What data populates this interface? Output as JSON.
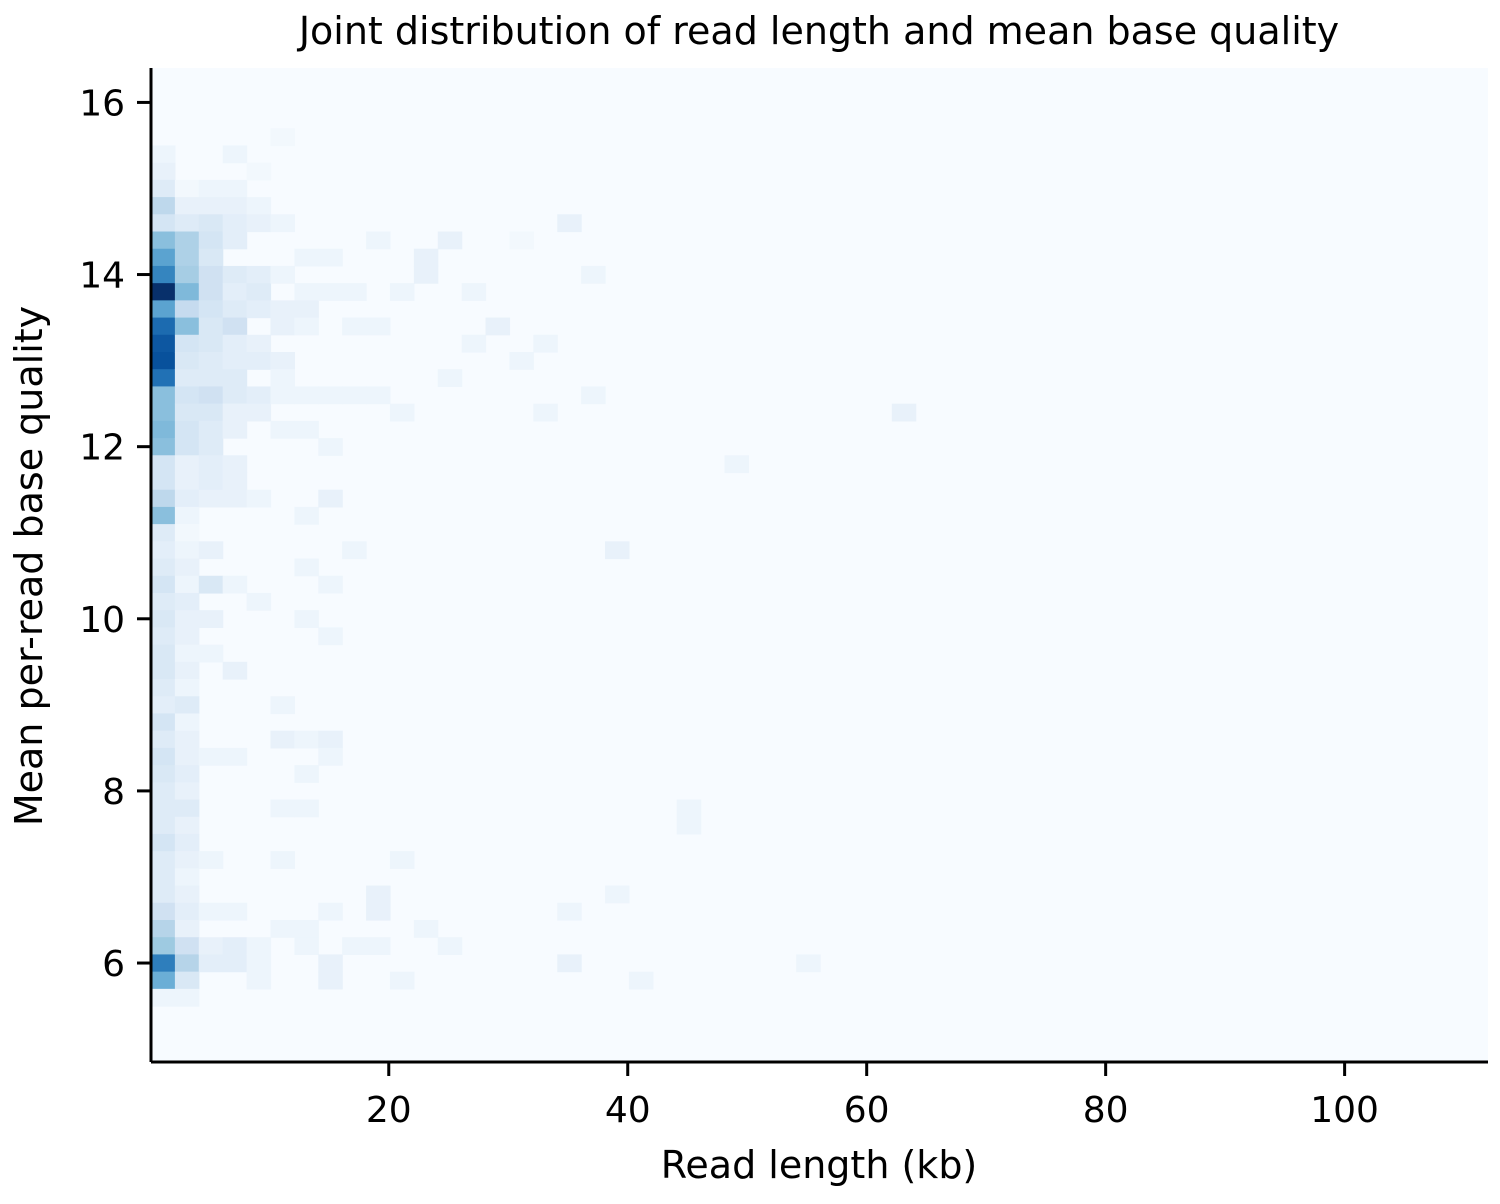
{
  "chart_data": {
    "type": "heatmap",
    "title": "Joint distribution of read length and mean base quality",
    "xlabel": "Read length (kb)",
    "ylabel": "Mean per-read base quality",
    "xlim": [
      0.1,
      112.0
    ],
    "ylim": [
      4.85,
      16.4
    ],
    "x_ticks": [
      20,
      40,
      60,
      80,
      100
    ],
    "y_ticks": [
      6,
      8,
      10,
      12,
      14,
      16
    ],
    "colormap": "Blues",
    "grid": false,
    "legend": "none",
    "background_color": "#f7fbff",
    "cell_kb": 2.0,
    "cell_q": 0.2,
    "cells": [
      [
        1.1,
        15.4,
        2
      ],
      [
        1.1,
        15.2,
        3
      ],
      [
        1.1,
        15.0,
        5
      ],
      [
        1.1,
        14.8,
        11
      ],
      [
        1.1,
        14.6,
        7
      ],
      [
        1.1,
        14.4,
        17
      ],
      [
        1.1,
        14.2,
        22
      ],
      [
        1.1,
        14.0,
        27
      ],
      [
        1.1,
        13.8,
        40
      ],
      [
        1.1,
        13.6,
        22
      ],
      [
        1.1,
        13.4,
        31
      ],
      [
        1.1,
        13.2,
        34
      ],
      [
        1.1,
        13.0,
        35
      ],
      [
        1.1,
        12.8,
        30
      ],
      [
        1.1,
        12.6,
        17
      ],
      [
        1.1,
        12.4,
        17
      ],
      [
        1.1,
        12.2,
        18
      ],
      [
        1.1,
        12.0,
        17
      ],
      [
        1.1,
        11.8,
        7
      ],
      [
        1.1,
        11.6,
        7
      ],
      [
        1.1,
        11.4,
        11
      ],
      [
        1.1,
        11.2,
        17
      ],
      [
        1.1,
        11.0,
        5
      ],
      [
        1.1,
        10.8,
        4
      ],
      [
        1.1,
        10.6,
        5
      ],
      [
        1.1,
        10.4,
        7
      ],
      [
        1.1,
        10.2,
        5
      ],
      [
        1.1,
        10.0,
        6
      ],
      [
        1.1,
        9.8,
        5
      ],
      [
        1.1,
        9.6,
        6
      ],
      [
        1.1,
        9.4,
        6
      ],
      [
        1.1,
        9.2,
        5
      ],
      [
        1.1,
        9.0,
        4
      ],
      [
        1.1,
        8.8,
        7
      ],
      [
        1.1,
        8.6,
        5
      ],
      [
        1.1,
        8.4,
        7
      ],
      [
        1.1,
        8.2,
        6
      ],
      [
        1.1,
        8.0,
        5
      ],
      [
        1.1,
        7.8,
        5
      ],
      [
        1.1,
        7.6,
        5
      ],
      [
        1.1,
        7.4,
        7
      ],
      [
        1.1,
        7.2,
        5
      ],
      [
        1.1,
        7.0,
        5
      ],
      [
        1.1,
        6.8,
        5
      ],
      [
        1.1,
        6.6,
        8
      ],
      [
        1.1,
        6.4,
        12
      ],
      [
        1.1,
        6.2,
        15
      ],
      [
        1.1,
        6.0,
        28
      ],
      [
        1.1,
        5.8,
        20
      ],
      [
        1.1,
        5.6,
        2
      ],
      [
        3.1,
        15.0,
        1
      ],
      [
        3.1,
        14.8,
        3
      ],
      [
        3.1,
        14.6,
        5
      ],
      [
        3.1,
        14.4,
        13
      ],
      [
        3.1,
        14.2,
        13
      ],
      [
        3.1,
        14.0,
        14
      ],
      [
        3.1,
        13.8,
        18
      ],
      [
        3.1,
        13.6,
        10
      ],
      [
        3.1,
        13.4,
        17
      ],
      [
        3.1,
        13.2,
        7
      ],
      [
        3.1,
        13.0,
        6
      ],
      [
        3.1,
        12.8,
        5
      ],
      [
        3.1,
        12.6,
        7
      ],
      [
        3.1,
        12.4,
        6
      ],
      [
        3.1,
        12.2,
        7
      ],
      [
        3.1,
        12.0,
        7
      ],
      [
        3.1,
        11.8,
        3
      ],
      [
        3.1,
        11.6,
        3
      ],
      [
        3.1,
        11.4,
        4
      ],
      [
        3.1,
        11.2,
        2
      ],
      [
        3.1,
        11.0,
        1
      ],
      [
        3.1,
        10.8,
        2
      ],
      [
        3.1,
        10.6,
        3
      ],
      [
        3.1,
        10.4,
        2
      ],
      [
        3.1,
        10.2,
        4
      ],
      [
        3.1,
        10.0,
        3
      ],
      [
        3.1,
        9.8,
        3
      ],
      [
        3.1,
        9.6,
        2
      ],
      [
        3.1,
        9.4,
        3
      ],
      [
        3.1,
        9.2,
        2
      ],
      [
        3.1,
        9.0,
        5
      ],
      [
        3.1,
        8.8,
        2
      ],
      [
        3.1,
        8.6,
        3
      ],
      [
        3.1,
        8.4,
        3
      ],
      [
        3.1,
        8.2,
        4
      ],
      [
        3.1,
        8.0,
        3
      ],
      [
        3.1,
        7.8,
        5
      ],
      [
        3.1,
        7.6,
        3
      ],
      [
        3.1,
        7.4,
        4
      ],
      [
        3.1,
        7.2,
        3
      ],
      [
        3.1,
        7.0,
        2
      ],
      [
        3.1,
        6.8,
        3
      ],
      [
        3.1,
        6.6,
        4
      ],
      [
        3.1,
        6.4,
        3
      ],
      [
        3.1,
        6.2,
        8
      ],
      [
        3.1,
        6.0,
        12
      ],
      [
        3.1,
        5.8,
        6
      ],
      [
        3.1,
        5.6,
        2
      ],
      [
        5.1,
        15.0,
        2
      ],
      [
        5.1,
        14.8,
        3
      ],
      [
        5.1,
        14.6,
        6
      ],
      [
        5.1,
        14.4,
        7
      ],
      [
        5.1,
        14.2,
        6
      ],
      [
        5.1,
        14.0,
        8
      ],
      [
        5.1,
        13.8,
        8
      ],
      [
        5.1,
        13.6,
        7
      ],
      [
        5.1,
        13.4,
        6
      ],
      [
        5.1,
        13.2,
        6
      ],
      [
        5.1,
        13.0,
        5
      ],
      [
        5.1,
        12.8,
        5
      ],
      [
        5.1,
        12.6,
        8
      ],
      [
        5.1,
        12.4,
        6
      ],
      [
        5.1,
        12.2,
        5
      ],
      [
        5.1,
        12.0,
        5
      ],
      [
        5.1,
        11.8,
        4
      ],
      [
        5.1,
        11.6,
        4
      ],
      [
        5.1,
        11.4,
        3
      ],
      [
        5.1,
        10.8,
        3
      ],
      [
        5.1,
        10.4,
        6
      ],
      [
        5.1,
        10.0,
        3
      ],
      [
        5.1,
        9.6,
        2
      ],
      [
        5.1,
        8.4,
        2
      ],
      [
        5.1,
        7.2,
        2
      ],
      [
        5.1,
        6.6,
        2
      ],
      [
        5.1,
        6.2,
        3
      ],
      [
        5.1,
        6.0,
        4
      ],
      [
        7.1,
        15.4,
        2
      ],
      [
        7.1,
        15.0,
        2
      ],
      [
        7.1,
        14.8,
        3
      ],
      [
        7.1,
        14.6,
        4
      ],
      [
        7.1,
        14.4,
        4
      ],
      [
        7.1,
        14.0,
        5
      ],
      [
        7.1,
        13.8,
        4
      ],
      [
        7.1,
        13.6,
        5
      ],
      [
        7.1,
        13.4,
        8
      ],
      [
        7.1,
        13.2,
        4
      ],
      [
        7.1,
        13.0,
        4
      ],
      [
        7.1,
        12.8,
        5
      ],
      [
        7.1,
        12.6,
        5
      ],
      [
        7.1,
        12.4,
        3
      ],
      [
        7.1,
        12.2,
        3
      ],
      [
        7.1,
        11.8,
        3
      ],
      [
        7.1,
        11.6,
        3
      ],
      [
        7.1,
        11.4,
        3
      ],
      [
        7.1,
        10.4,
        2
      ],
      [
        7.1,
        9.4,
        3
      ],
      [
        7.1,
        8.4,
        2
      ],
      [
        7.1,
        6.6,
        2
      ],
      [
        7.1,
        6.2,
        4
      ],
      [
        7.1,
        6.0,
        4
      ],
      [
        9.1,
        15.2,
        1
      ],
      [
        9.1,
        14.8,
        2
      ],
      [
        9.1,
        14.6,
        3
      ],
      [
        9.1,
        14.0,
        4
      ],
      [
        9.1,
        13.8,
        5
      ],
      [
        9.1,
        13.6,
        4
      ],
      [
        9.1,
        13.2,
        3
      ],
      [
        9.1,
        13.0,
        4
      ],
      [
        9.1,
        12.6,
        4
      ],
      [
        9.1,
        12.4,
        3
      ],
      [
        9.1,
        11.4,
        2
      ],
      [
        9.1,
        10.2,
        2
      ],
      [
        9.1,
        6.2,
        2
      ],
      [
        9.1,
        6.0,
        2
      ],
      [
        9.1,
        5.8,
        2
      ],
      [
        11.1,
        15.6,
        1
      ],
      [
        11.1,
        14.6,
        2
      ],
      [
        11.1,
        14.0,
        2
      ],
      [
        11.1,
        13.6,
        3
      ],
      [
        11.1,
        13.4,
        3
      ],
      [
        11.1,
        13.0,
        3
      ],
      [
        11.1,
        12.8,
        2
      ],
      [
        11.1,
        12.6,
        2
      ],
      [
        11.1,
        12.2,
        2
      ],
      [
        11.1,
        9.0,
        2
      ],
      [
        11.1,
        8.6,
        3
      ],
      [
        11.1,
        7.8,
        2
      ],
      [
        11.1,
        7.2,
        2
      ],
      [
        11.1,
        6.4,
        2
      ],
      [
        13.1,
        14.2,
        2
      ],
      [
        13.1,
        13.8,
        2
      ],
      [
        13.1,
        13.6,
        3
      ],
      [
        13.1,
        13.4,
        2
      ],
      [
        13.1,
        12.6,
        2
      ],
      [
        13.1,
        12.2,
        2
      ],
      [
        13.1,
        11.2,
        2
      ],
      [
        13.1,
        10.6,
        2
      ],
      [
        13.1,
        10.0,
        2
      ],
      [
        13.1,
        8.6,
        2
      ],
      [
        13.1,
        8.2,
        2
      ],
      [
        13.1,
        7.8,
        2
      ],
      [
        13.1,
        6.4,
        2
      ],
      [
        13.1,
        6.2,
        2
      ],
      [
        15.1,
        14.2,
        2
      ],
      [
        15.1,
        13.8,
        2
      ],
      [
        15.1,
        12.6,
        2
      ],
      [
        15.1,
        12.0,
        2
      ],
      [
        15.1,
        11.4,
        3
      ],
      [
        15.1,
        10.4,
        2
      ],
      [
        15.1,
        9.8,
        2
      ],
      [
        15.1,
        8.6,
        3
      ],
      [
        15.1,
        8.4,
        2
      ],
      [
        15.1,
        6.6,
        2
      ],
      [
        15.1,
        6.0,
        3
      ],
      [
        15.1,
        5.8,
        3
      ],
      [
        17.1,
        13.8,
        2
      ],
      [
        17.1,
        13.4,
        2
      ],
      [
        17.1,
        12.6,
        2
      ],
      [
        17.1,
        10.8,
        2
      ],
      [
        17.1,
        6.2,
        2
      ],
      [
        19.1,
        14.4,
        2
      ],
      [
        19.1,
        13.4,
        2
      ],
      [
        19.1,
        12.6,
        2
      ],
      [
        19.1,
        6.8,
        3
      ],
      [
        19.1,
        6.6,
        3
      ],
      [
        19.1,
        6.2,
        2
      ],
      [
        21.1,
        13.8,
        2
      ],
      [
        21.1,
        12.4,
        2
      ],
      [
        21.1,
        7.2,
        2
      ],
      [
        21.1,
        5.8,
        2
      ],
      [
        23.1,
        14.0,
        3
      ],
      [
        23.1,
        14.2,
        3
      ],
      [
        23.1,
        6.4,
        2
      ],
      [
        25.1,
        14.4,
        3
      ],
      [
        25.1,
        12.8,
        2
      ],
      [
        25.1,
        6.2,
        2
      ],
      [
        27.1,
        13.8,
        2
      ],
      [
        27.1,
        13.2,
        2
      ],
      [
        29.1,
        13.4,
        3
      ],
      [
        31.1,
        14.4,
        1
      ],
      [
        31.1,
        13.0,
        2
      ],
      [
        33.1,
        13.2,
        2
      ],
      [
        33.1,
        12.4,
        2
      ],
      [
        35.1,
        14.6,
        3
      ],
      [
        35.1,
        6.6,
        2
      ],
      [
        35.1,
        6.0,
        3
      ],
      [
        37.1,
        14.0,
        2
      ],
      [
        37.1,
        12.6,
        2
      ],
      [
        39.1,
        10.8,
        3
      ],
      [
        39.1,
        6.8,
        2
      ],
      [
        41.1,
        5.8,
        2
      ],
      [
        45.1,
        7.8,
        2
      ],
      [
        45.1,
        7.6,
        2
      ],
      [
        49.1,
        11.8,
        2
      ],
      [
        55.1,
        6.0,
        2
      ],
      [
        63.1,
        12.4,
        3
      ]
    ]
  }
}
